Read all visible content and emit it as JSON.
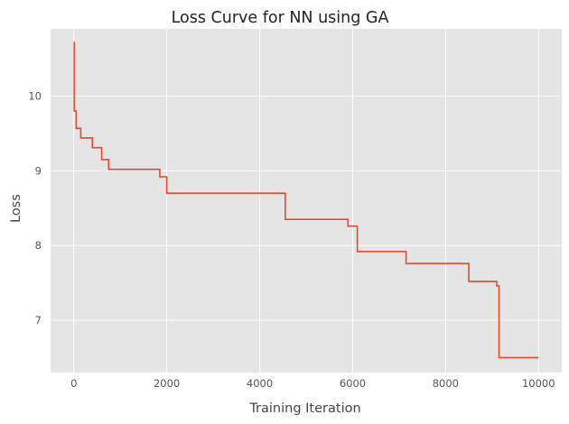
{
  "chart_data": {
    "type": "line",
    "title": "Loss Curve for NN using GA",
    "xlabel": "Training Iteration",
    "ylabel": "Loss",
    "xlim": [
      -500,
      10500
    ],
    "ylim": [
      6.3,
      10.9
    ],
    "xticks": [
      0,
      2000,
      4000,
      6000,
      8000,
      10000
    ],
    "yticks": [
      7,
      8,
      9,
      10
    ],
    "grid": true,
    "style": "step",
    "colors": {
      "background": "#e5e5e5",
      "grid": "#ffffff",
      "line": "#e24a33"
    },
    "series": [
      {
        "x": [
          0,
          10,
          50,
          150,
          400,
          600,
          750,
          1850,
          2000,
          4550,
          5900,
          6100,
          7150,
          8500,
          9100,
          9150,
          10000
        ],
        "y": [
          10.72,
          9.8,
          9.57,
          9.44,
          9.31,
          9.15,
          9.02,
          8.92,
          8.7,
          8.35,
          8.26,
          7.92,
          7.76,
          7.52,
          7.46,
          6.5,
          6.5
        ]
      }
    ]
  }
}
